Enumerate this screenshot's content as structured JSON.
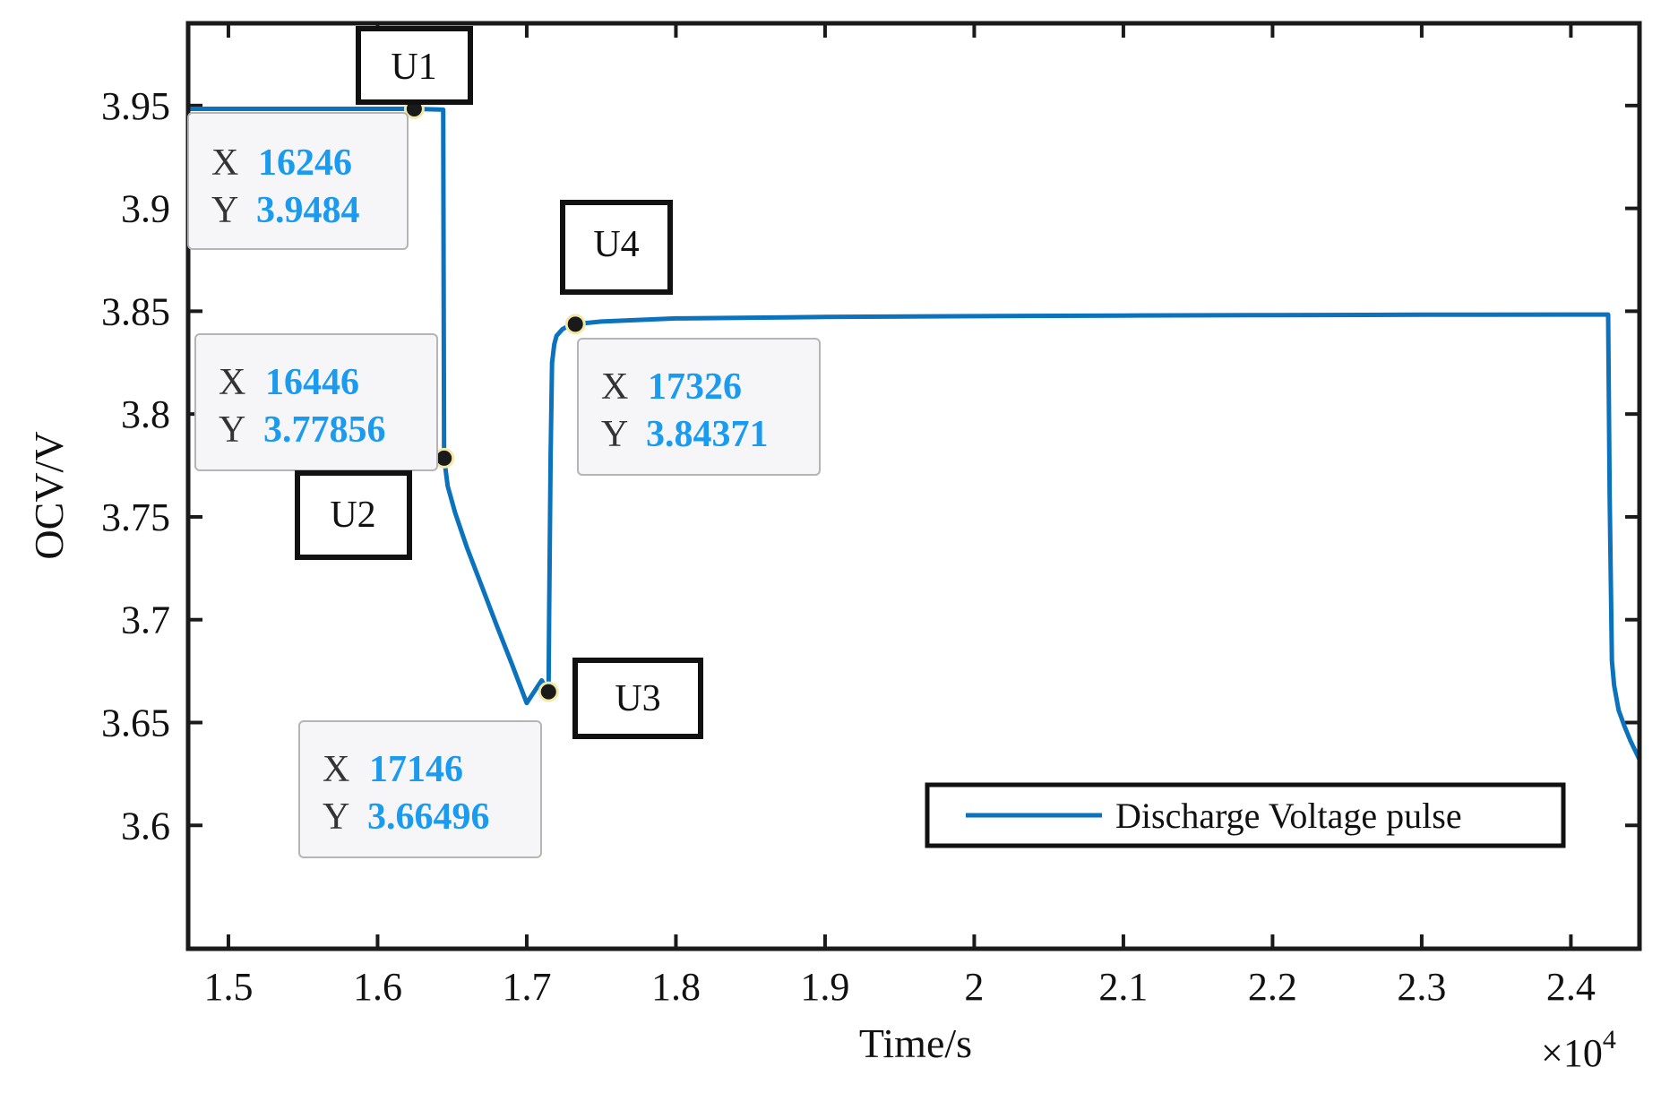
{
  "chart_data": {
    "type": "line",
    "title": "",
    "xlabel": "Time/s",
    "ylabel": "OCV/V",
    "x_multiplier_label": "×10",
    "x_multiplier_exponent": "4",
    "xlim": [
      14730,
      24460
    ],
    "ylim": [
      3.54,
      3.99
    ],
    "x_ticks": [
      15000,
      16000,
      17000,
      18000,
      19000,
      20000,
      21000,
      22000,
      23000,
      24000
    ],
    "x_tick_labels": [
      "1.5",
      "1.6",
      "1.7",
      "1.8",
      "1.9",
      "2",
      "2.1",
      "2.2",
      "2.3",
      "2.4"
    ],
    "y_ticks": [
      3.6,
      3.65,
      3.7,
      3.75,
      3.8,
      3.85,
      3.9,
      3.95
    ],
    "y_tick_labels": [
      "3.6",
      "3.65",
      "3.7",
      "3.75",
      "3.8",
      "3.85",
      "3.9",
      "3.95"
    ],
    "grid": false,
    "legend_position": "bottom-right",
    "series": [
      {
        "name": "Discharge Voltage pulse",
        "color": "#0b72bd",
        "x": [
          14730,
          16246,
          16440,
          16446,
          16470,
          16520,
          16600,
          16700,
          16800,
          16900,
          17000,
          17100,
          17146,
          17150,
          17160,
          17170,
          17185,
          17200,
          17240,
          17280,
          17326,
          17500,
          18000,
          19000,
          20000,
          21000,
          22000,
          23000,
          24000,
          24250,
          24260,
          24275,
          24290,
          24320,
          24360,
          24400,
          24460
        ],
        "y": [
          3.9484,
          3.9484,
          3.948,
          3.77856,
          3.765,
          3.752,
          3.735,
          3.716,
          3.697,
          3.6785,
          3.6595,
          3.6705,
          3.66496,
          3.7,
          3.78,
          3.825,
          3.834,
          3.838,
          3.8413,
          3.8428,
          3.84371,
          3.845,
          3.8465,
          3.8472,
          3.8476,
          3.8479,
          3.8481,
          3.8483,
          3.8484,
          3.8484,
          3.76,
          3.68,
          3.668,
          3.656,
          3.648,
          3.641,
          3.632
        ]
      }
    ],
    "datatips": [
      {
        "label": "U1",
        "x_letter": "X",
        "y_letter": "Y",
        "x": 16246,
        "y": 3.9484,
        "x_text": "16246",
        "y_text": "3.9484"
      },
      {
        "label": "U2",
        "x_letter": "X",
        "y_letter": "Y",
        "x": 16446,
        "y": 3.77856,
        "x_text": "16446",
        "y_text": "3.77856"
      },
      {
        "label": "U3",
        "x_letter": "X",
        "y_letter": "Y",
        "x": 17146,
        "y": 3.66496,
        "x_text": "17146",
        "y_text": "3.66496"
      },
      {
        "label": "U4",
        "x_letter": "X",
        "y_letter": "Y",
        "x": 17326,
        "y": 3.84371,
        "x_text": "17326",
        "y_text": "3.84371"
      }
    ]
  }
}
